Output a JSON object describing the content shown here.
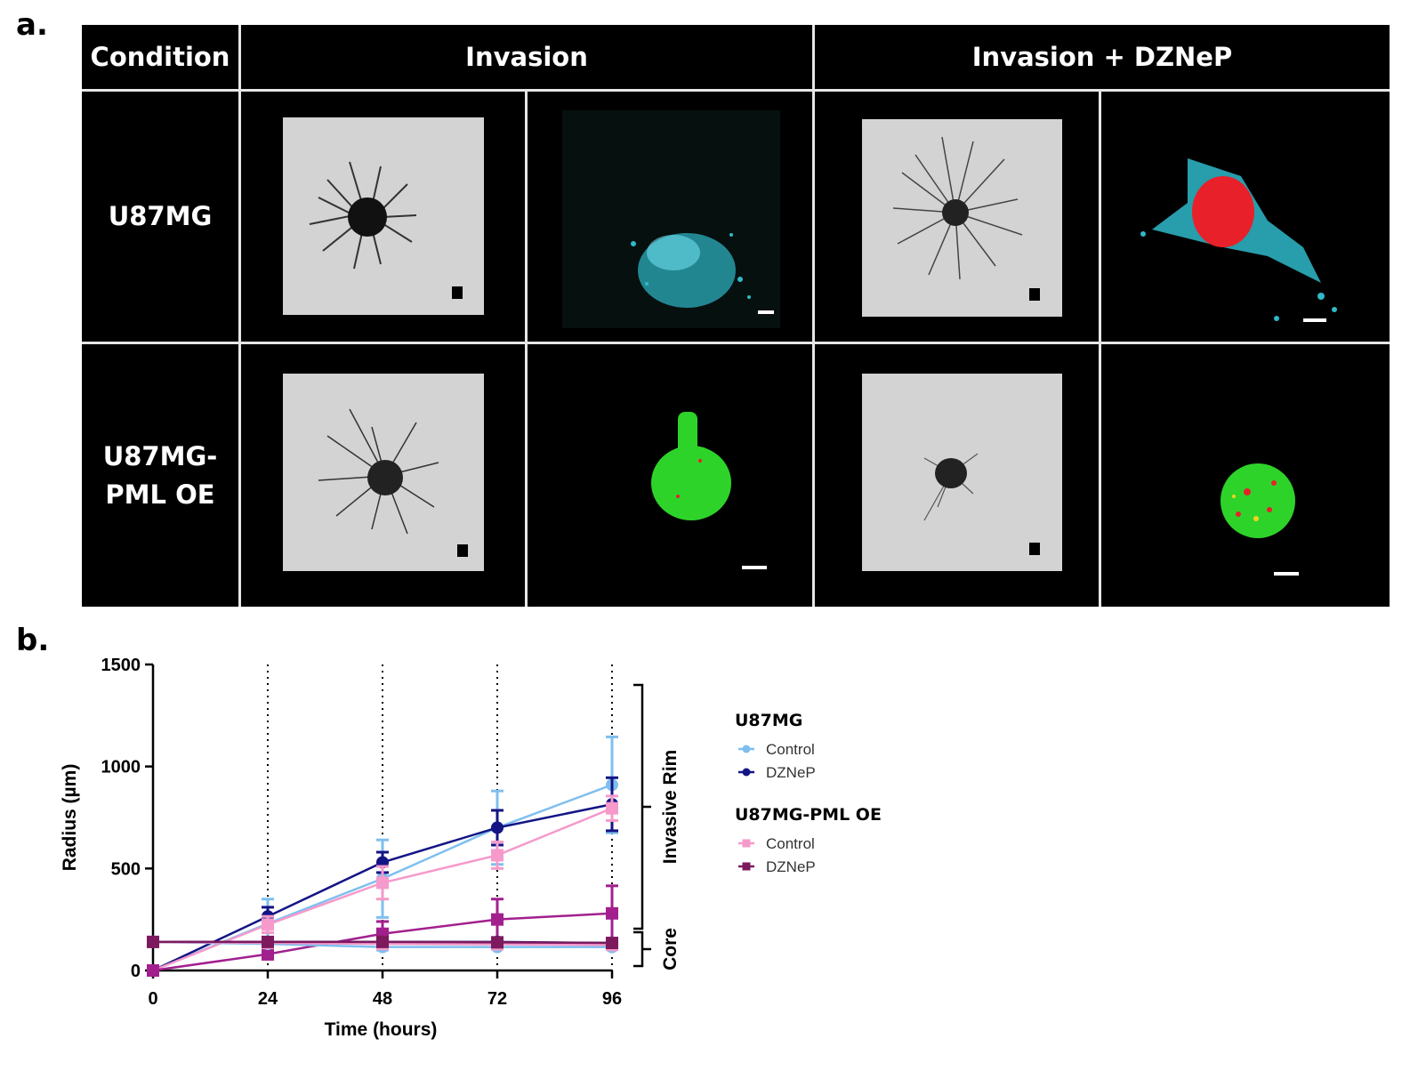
{
  "panel_a": {
    "letter": "a.",
    "headers": {
      "condition": "Condition",
      "invasion": "Invasion",
      "invasion_dznep": "Invasion + DZNeP"
    },
    "rows": [
      {
        "label_line1": "U87MG",
        "label_line2": ""
      },
      {
        "label_line1": "U87MG-",
        "label_line2": "PML OE"
      }
    ],
    "colors": {
      "cyan_stain": "#2fb9c9",
      "red_stain": "#e8202a",
      "green_stain": "#2ed32a",
      "brightfield": "#d2d2d2"
    }
  },
  "panel_b": {
    "letter": "b.",
    "bracket_labels": {
      "rim": "Invasive Rim",
      "core": "Core"
    }
  },
  "chart_data": {
    "type": "line",
    "title": "",
    "xlabel": "Time (hours)",
    "ylabel": "Radius (µm)",
    "xlim": [
      0,
      96
    ],
    "ylim": [
      0,
      1500
    ],
    "xticks": [
      0,
      24,
      48,
      72,
      96
    ],
    "yticks": [
      0,
      500,
      1000,
      1500
    ],
    "vertical_dotted_lines_at": [
      24,
      48,
      72,
      96
    ],
    "legend": {
      "placement": "right",
      "groups": [
        {
          "title": "U87MG",
          "entries": [
            "Control",
            "DZNeP"
          ]
        },
        {
          "title": "U87MG-PML OE",
          "entries": [
            "Control",
            "DZNeP"
          ]
        }
      ]
    },
    "series": [
      {
        "group": "U87MG",
        "name": "Control",
        "kind": "rim",
        "color": "#7fbfef",
        "marker": "circle",
        "x": [
          0,
          24,
          48,
          72,
          96
        ],
        "y": [
          0,
          230,
          450,
          700,
          910
        ],
        "err": [
          0,
          120,
          190,
          180,
          235
        ]
      },
      {
        "group": "U87MG",
        "name": "DZNeP",
        "kind": "rim",
        "color": "#131585",
        "marker": "circle",
        "x": [
          0,
          24,
          48,
          72,
          96
        ],
        "y": [
          0,
          265,
          530,
          700,
          815
        ],
        "err": [
          0,
          45,
          50,
          85,
          130
        ]
      },
      {
        "group": "U87MG-PML OE",
        "name": "Control",
        "kind": "rim",
        "color": "#f59acb",
        "marker": "square",
        "x": [
          0,
          24,
          48,
          72,
          96
        ],
        "y": [
          0,
          225,
          430,
          565,
          795
        ],
        "err": [
          0,
          40,
          80,
          65,
          60
        ]
      },
      {
        "group": "U87MG-PML OE",
        "name": "DZNeP",
        "kind": "rim",
        "color": "#a2208e",
        "marker": "square",
        "x": [
          0,
          24,
          48,
          72,
          96
        ],
        "y": [
          0,
          80,
          180,
          250,
          280
        ],
        "err": [
          0,
          25,
          60,
          100,
          135
        ]
      },
      {
        "group": "U87MG",
        "name": "Control",
        "kind": "core",
        "color": "#7fbfef",
        "marker": "circle",
        "x": [
          0,
          24,
          48,
          72,
          96
        ],
        "y": [
          140,
          130,
          115,
          115,
          115
        ],
        "err": [
          0,
          15,
          15,
          10,
          10
        ]
      },
      {
        "group": "U87MG",
        "name": "DZNeP",
        "kind": "core",
        "color": "#131585",
        "marker": "circle",
        "x": [
          0,
          24,
          48,
          72,
          96
        ],
        "y": [
          140,
          140,
          140,
          140,
          135
        ],
        "err": [
          0,
          10,
          10,
          10,
          10
        ]
      },
      {
        "group": "U87MG-PML OE",
        "name": "Control",
        "kind": "core",
        "color": "#f59acb",
        "marker": "square",
        "x": [
          0,
          24,
          48,
          72,
          96
        ],
        "y": [
          140,
          135,
          130,
          128,
          125
        ],
        "err": [
          0,
          10,
          10,
          10,
          10
        ]
      },
      {
        "group": "U87MG-PML OE",
        "name": "DZNeP",
        "kind": "core",
        "color": "#7d1a5e",
        "marker": "square",
        "x": [
          0,
          24,
          48,
          72,
          96
        ],
        "y": [
          140,
          140,
          140,
          138,
          135
        ],
        "err": [
          0,
          10,
          10,
          10,
          10
        ]
      }
    ]
  }
}
